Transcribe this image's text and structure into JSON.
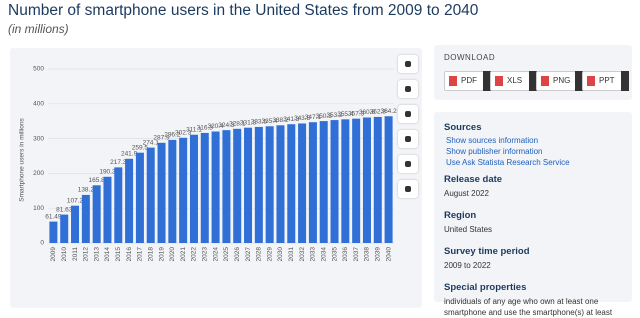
{
  "chart_data": {
    "type": "bar",
    "title": "Number of smartphone users in the United States from 2009 to 2040",
    "subtitle": "(in millions)",
    "y_label": "Smartphone users in millions",
    "categories": [
      "2009",
      "2010",
      "2011",
      "2012",
      "2013",
      "2014",
      "2015",
      "2016",
      "2017",
      "2018",
      "2019",
      "2020",
      "2021",
      "2022",
      "2023",
      "2024",
      "2025",
      "2026",
      "2027",
      "2028",
      "2029",
      "2030",
      "2031",
      "2032",
      "2033",
      "2034",
      "2035",
      "2036",
      "2037",
      "2038",
      "2039",
      "2040"
    ],
    "values": [
      61.49,
      81.63,
      107.2,
      138.2,
      165.8,
      190.3,
      217.3,
      241.9,
      259.5,
      274.1,
      287.9,
      296.2,
      302.3,
      311.1,
      316.3,
      320.4,
      324.3,
      328.1,
      331.3,
      333.5,
      335.4,
      338.2,
      341.3,
      343.5,
      347.1,
      350.3,
      353.2,
      355.4,
      357.3,
      360.6,
      362.3,
      364.2
    ],
    "color": "#2f6fd6",
    "ylim": [
      0,
      500
    ],
    "yticks": [
      0,
      100,
      200,
      300,
      400,
      500
    ],
    "grid": true
  },
  "download": {
    "title": "DOWNLOAD",
    "buttons": [
      "PDF",
      "XLS",
      "PNG",
      "PPT"
    ]
  },
  "details": {
    "sources_title": "Sources",
    "links": [
      "Show sources information",
      "Show publisher information",
      "Use Ask Statista Research Service"
    ],
    "items": [
      {
        "label": "Release date",
        "value": "August 2022"
      },
      {
        "label": "Region",
        "value": "United States"
      },
      {
        "label": "Survey time period",
        "value": "2009 to 2022"
      },
      {
        "label": "Special properties",
        "value": "individuals of any age who own at least one smartphone and use the smartphone(s) at least"
      }
    ]
  }
}
